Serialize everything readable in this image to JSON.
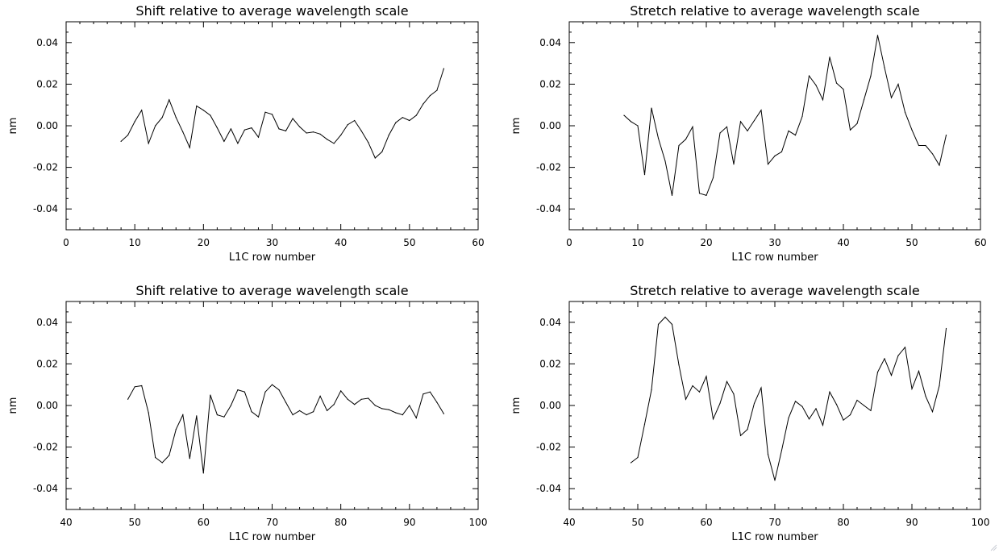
{
  "chart_data": [
    {
      "type": "line",
      "title": "Shift relative to average wavelength scale",
      "xlabel": "L1C row number",
      "ylabel": "nm",
      "xlim": [
        0,
        60
      ],
      "ylim": [
        -0.05,
        0.05
      ],
      "xticks": [
        "0",
        "10",
        "20",
        "30",
        "40",
        "50",
        "60"
      ],
      "yticks": [
        "-0.04",
        "-0.02",
        "0.00",
        "0.02",
        "0.04"
      ],
      "x": [
        8,
        9,
        10,
        11,
        12,
        13,
        14,
        15,
        16,
        17,
        18,
        19,
        20,
        21,
        22,
        23,
        24,
        25,
        26,
        27,
        28,
        29,
        30,
        31,
        32,
        33,
        34,
        35,
        36,
        37,
        38,
        39,
        40,
        41,
        42,
        43,
        44,
        45,
        46,
        47,
        48,
        49,
        50,
        51,
        52,
        53,
        54,
        55
      ],
      "y": [
        -0.0075,
        -0.0045,
        0.002,
        0.0075,
        -0.0085,
        0.0,
        0.004,
        0.0125,
        0.004,
        -0.003,
        -0.0105,
        0.0095,
        0.0075,
        0.005,
        -0.001,
        -0.0075,
        -0.0015,
        -0.0085,
        -0.002,
        -0.001,
        -0.0055,
        0.0065,
        0.0055,
        -0.0015,
        -0.0025,
        0.0035,
        -0.0005,
        -0.0035,
        -0.003,
        -0.004,
        -0.0065,
        -0.0085,
        -0.0045,
        0.0005,
        0.0025,
        -0.0025,
        -0.008,
        -0.0155,
        -0.0125,
        -0.0045,
        0.0015,
        0.004,
        0.0025,
        0.005,
        0.0105,
        0.0145,
        0.017,
        0.0275
      ]
    },
    {
      "type": "line",
      "title": "Stretch relative to average wavelength scale",
      "xlabel": "L1C row number",
      "ylabel": "nm",
      "xlim": [
        0,
        60
      ],
      "ylim": [
        -0.05,
        0.05
      ],
      "xticks": [
        "0",
        "10",
        "20",
        "30",
        "40",
        "50",
        "60"
      ],
      "yticks": [
        "-0.04",
        "-0.02",
        "0.00",
        "0.02",
        "0.04"
      ],
      "x": [
        8,
        9,
        10,
        11,
        12,
        13,
        14,
        15,
        16,
        17,
        18,
        19,
        20,
        21,
        22,
        23,
        24,
        25,
        26,
        27,
        28,
        29,
        30,
        31,
        32,
        33,
        34,
        35,
        36,
        37,
        38,
        39,
        40,
        41,
        42,
        43,
        44,
        45,
        46,
        47,
        48,
        49,
        50,
        51,
        52,
        53,
        54,
        55
      ],
      "y": [
        0.005,
        0.002,
        0.0,
        -0.0235,
        0.0085,
        -0.006,
        -0.017,
        -0.0335,
        -0.0095,
        -0.0065,
        -0.0005,
        -0.0325,
        -0.0335,
        -0.025,
        -0.0035,
        -0.0005,
        -0.0185,
        0.002,
        -0.0025,
        0.0025,
        0.0075,
        -0.0185,
        -0.0145,
        -0.0125,
        -0.0025,
        -0.0045,
        0.0045,
        0.024,
        0.0195,
        0.0125,
        0.033,
        0.0205,
        0.0175,
        -0.002,
        0.001,
        0.0125,
        0.024,
        0.0435,
        0.028,
        0.0135,
        0.02,
        0.0065,
        -0.002,
        -0.0095,
        -0.0095,
        -0.0135,
        -0.019,
        -0.0045
      ]
    },
    {
      "type": "line",
      "title": "Shift relative to average wavelength scale",
      "xlabel": "L1C row number",
      "ylabel": "nm",
      "xlim": [
        40,
        100
      ],
      "ylim": [
        -0.05,
        0.05
      ],
      "xticks": [
        "40",
        "50",
        "60",
        "70",
        "80",
        "90",
        "100"
      ],
      "yticks": [
        "-0.04",
        "-0.02",
        "0.00",
        "0.02",
        "0.04"
      ],
      "x": [
        49,
        50,
        51,
        52,
        53,
        54,
        55,
        56,
        57,
        58,
        59,
        60,
        61,
        62,
        63,
        64,
        65,
        66,
        67,
        68,
        69,
        70,
        71,
        72,
        73,
        74,
        75,
        76,
        77,
        78,
        79,
        80,
        81,
        82,
        83,
        84,
        85,
        86,
        87,
        88,
        89,
        90,
        91,
        92,
        93,
        94,
        95
      ],
      "y": [
        0.003,
        0.009,
        0.0095,
        -0.0035,
        -0.025,
        -0.0275,
        -0.024,
        -0.0115,
        -0.0045,
        -0.0255,
        -0.005,
        -0.0325,
        0.005,
        -0.0045,
        -0.0055,
        0.0,
        0.0075,
        0.0065,
        -0.003,
        -0.0055,
        0.0065,
        0.01,
        0.0075,
        0.0015,
        -0.0045,
        -0.0025,
        -0.0045,
        -0.003,
        0.0045,
        -0.0025,
        0.0005,
        0.007,
        0.003,
        0.0005,
        0.003,
        0.0035,
        0.0,
        -0.0015,
        -0.002,
        -0.0035,
        -0.0045,
        0.0,
        -0.006,
        0.0055,
        0.0065,
        0.0015,
        -0.004
      ]
    },
    {
      "type": "line",
      "title": "Stretch relative to average wavelength scale",
      "xlabel": "L1C row number",
      "ylabel": "nm",
      "xlim": [
        40,
        100
      ],
      "ylim": [
        -0.05,
        0.05
      ],
      "xticks": [
        "40",
        "50",
        "60",
        "70",
        "80",
        "90",
        "100"
      ],
      "yticks": [
        "-0.04",
        "-0.02",
        "0.00",
        "0.02",
        "0.04"
      ],
      "x": [
        49,
        50,
        51,
        52,
        53,
        54,
        55,
        56,
        57,
        58,
        59,
        60,
        61,
        62,
        63,
        64,
        65,
        66,
        67,
        68,
        69,
        70,
        71,
        72,
        73,
        74,
        75,
        76,
        77,
        78,
        79,
        80,
        81,
        82,
        83,
        84,
        85,
        86,
        87,
        88,
        89,
        90,
        91,
        92,
        93,
        94,
        95
      ],
      "y": [
        -0.0275,
        -0.025,
        -0.009,
        0.0075,
        0.039,
        0.0425,
        0.039,
        0.0195,
        0.003,
        0.0095,
        0.0065,
        0.014,
        -0.0065,
        0.001,
        0.0115,
        0.0055,
        -0.0145,
        -0.0115,
        0.001,
        0.0085,
        -0.0235,
        -0.036,
        -0.0215,
        -0.006,
        0.002,
        -0.0005,
        -0.0065,
        -0.0015,
        -0.0095,
        0.0065,
        0.0005,
        -0.007,
        -0.0045,
        0.0025,
        0.0,
        -0.0025,
        0.016,
        0.0225,
        0.0145,
        0.024,
        0.028,
        0.008,
        0.0165,
        0.0045,
        -0.003,
        0.0095,
        0.037
      ]
    }
  ]
}
